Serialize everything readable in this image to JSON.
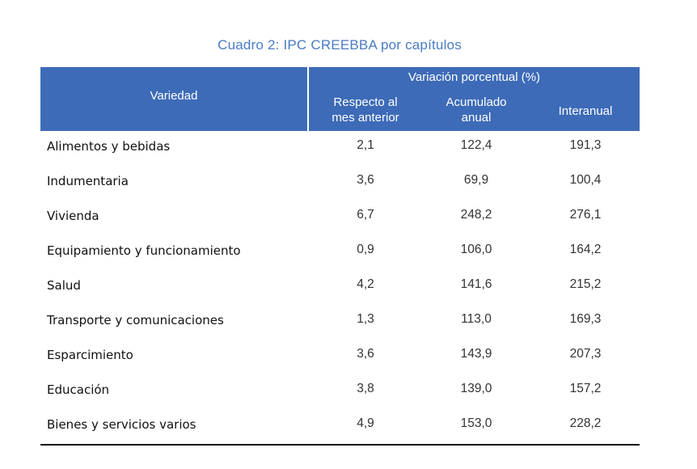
{
  "title": "Cuadro 2: IPC CREEBBA por capítulos",
  "header": {
    "variedad": "Variedad",
    "group": "Variación porcentual (%)",
    "col1_line1": "Respecto al",
    "col1_line2": "mes anterior",
    "col2_line1": "Acumulado",
    "col2_line2": "anual",
    "col3": "Interanual"
  },
  "rows": [
    {
      "name": "Alimentos y bebidas",
      "mes": "2,1",
      "acumulado": "122,4",
      "interanual": "191,3"
    },
    {
      "name": "Indumentaria",
      "mes": "3,6",
      "acumulado": "69,9",
      "interanual": "100,4"
    },
    {
      "name": "Vivienda",
      "mes": "6,7",
      "acumulado": "248,2",
      "interanual": "276,1"
    },
    {
      "name": "Equipamiento y funcionamiento",
      "mes": "0,9",
      "acumulado": "106,0",
      "interanual": "164,2"
    },
    {
      "name": "Salud",
      "mes": "4,2",
      "acumulado": "141,6",
      "interanual": "215,2"
    },
    {
      "name": "Transporte y comunicaciones",
      "mes": "1,3",
      "acumulado": "113,0",
      "interanual": "169,3"
    },
    {
      "name": "Esparcimiento",
      "mes": "3,6",
      "acumulado": "143,9",
      "interanual": "207,3"
    },
    {
      "name": "Educación",
      "mes": "3,8",
      "acumulado": "139,0",
      "interanual": "157,2"
    },
    {
      "name": "Bienes y servicios varios",
      "mes": "4,9",
      "acumulado": "153,0",
      "interanual": "228,2"
    }
  ],
  "colors": {
    "header_bg": "#3d6bb8",
    "title": "#4a7bc4"
  }
}
